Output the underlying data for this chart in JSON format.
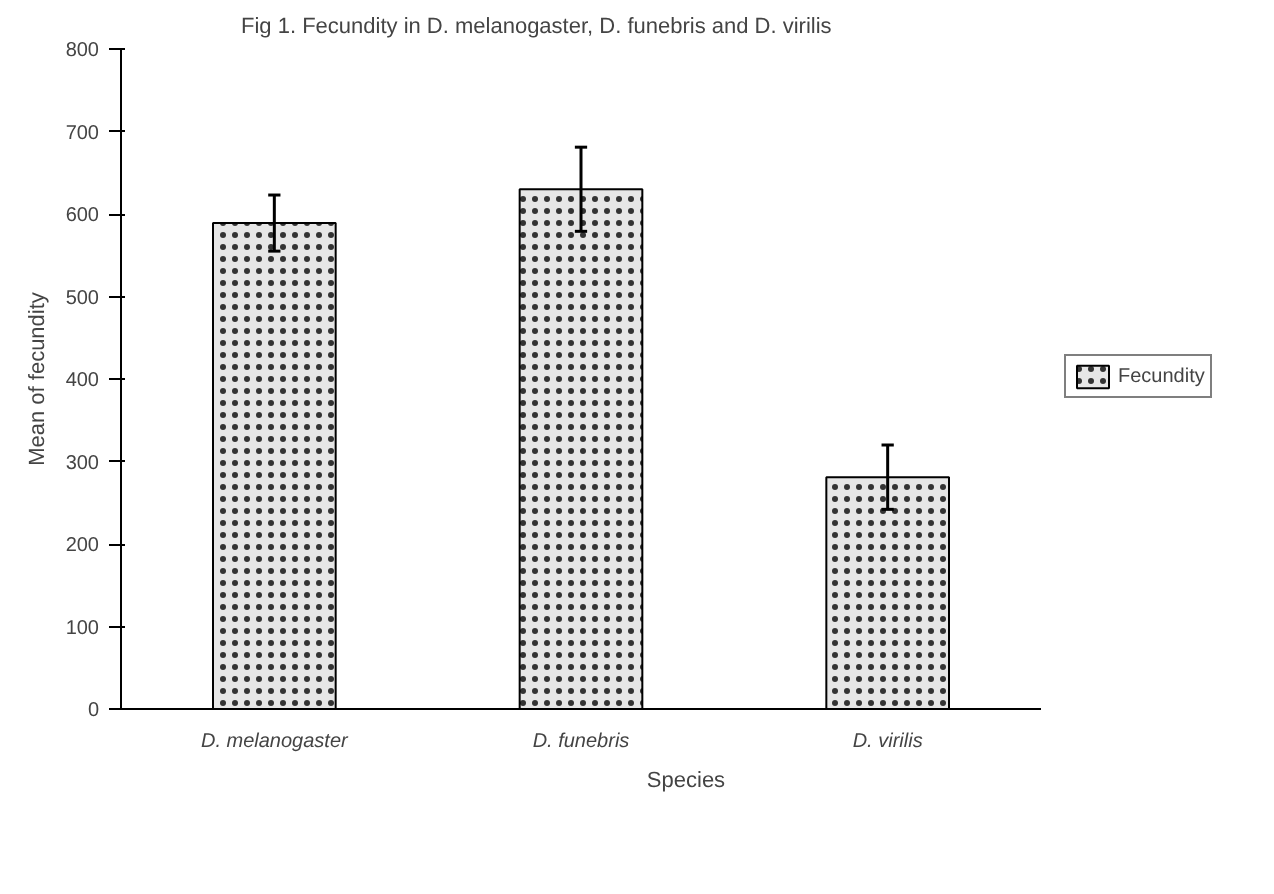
{
  "chart_data": {
    "type": "bar",
    "title": "Fig 1. Fecundity in D. melanogaster, D. funebris and D. virilis",
    "xlabel": "Species",
    "ylabel": "Mean of fecundity",
    "categories": [
      "D. melanogaster",
      "D. funebris",
      "D. virilis"
    ],
    "series": [
      {
        "name": "Fecundity",
        "color": "#e6e6e6",
        "values": [
          589,
          630,
          281
        ],
        "errors": [
          34,
          51,
          39
        ]
      }
    ],
    "ylim": [
      0,
      800
    ],
    "yticks": [
      0,
      100,
      200,
      300,
      400,
      500,
      600,
      700,
      800
    ],
    "grid": false,
    "legend": "right"
  }
}
